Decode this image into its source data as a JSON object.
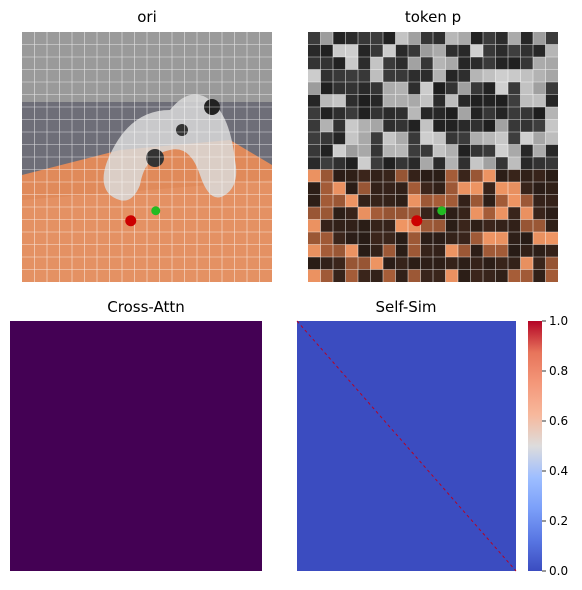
{
  "panels": {
    "ori": {
      "title": "ori"
    },
    "token": {
      "title": "token p"
    },
    "cross": {
      "title": "Cross-Attn"
    },
    "self": {
      "title": "Self-Sim"
    }
  },
  "grid": {
    "cells": 20
  },
  "markers": {
    "red": {
      "color": "#cc0000",
      "fx": 0.435,
      "fy": 0.755
    },
    "green": {
      "color": "#22bb22",
      "fx": 0.535,
      "fy": 0.715
    }
  },
  "chart_data": [
    {
      "type": "heatmap",
      "title": "Cross-Attn",
      "uniform_color": "#440154"
    },
    {
      "type": "heatmap",
      "title": "Self-Sim",
      "background_color": "#3b4cc0",
      "diagonal_value": 1.0,
      "off_diagonal_value": 0.0,
      "colorbar": {
        "cmap": "coolwarm",
        "range": [
          0.0,
          1.0
        ],
        "ticks": [
          "0.0",
          "0.2",
          "0.4",
          "0.6",
          "0.8",
          "1.0"
        ]
      }
    }
  ]
}
